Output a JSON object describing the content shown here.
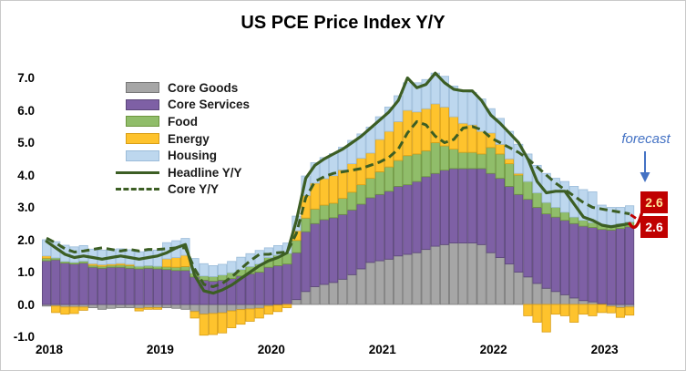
{
  "title": "US PCE Price Index Y/Y",
  "annotation": {
    "label": "forecast",
    "headline_value": "2.6",
    "core_value": "2.6",
    "text_color": "#4472c4",
    "badge_bg": "#c00000",
    "badge_text_top": "#ffe699",
    "badge_text_bottom": "#ffffff",
    "forecast_line_color": "#c00000"
  },
  "chart_data": {
    "type": "combo: stacked monthly bars + lines",
    "title": "US PCE Price Index Y/Y",
    "ylim": [
      -1.0,
      7.0
    ],
    "yticks": [
      "7.0",
      "6.0",
      "5.0",
      "4.0",
      "3.0",
      "2.0",
      "1.0",
      "0.0",
      "-1.0"
    ],
    "xticks": [
      "2018",
      "2019",
      "2020",
      "2021",
      "2022",
      "2023"
    ],
    "grid": false,
    "legend_position": "upper-left-inside",
    "categories": [
      "2018-01",
      "2018-02",
      "2018-03",
      "2018-04",
      "2018-05",
      "2018-06",
      "2018-07",
      "2018-08",
      "2018-09",
      "2018-10",
      "2018-11",
      "2018-12",
      "2019-01",
      "2019-02",
      "2019-03",
      "2019-04",
      "2019-05",
      "2019-06",
      "2019-07",
      "2019-08",
      "2019-09",
      "2019-10",
      "2019-11",
      "2019-12",
      "2020-01",
      "2020-02",
      "2020-03",
      "2020-04",
      "2020-05",
      "2020-06",
      "2020-07",
      "2020-08",
      "2020-09",
      "2020-10",
      "2020-11",
      "2020-12",
      "2021-01",
      "2021-02",
      "2021-03",
      "2021-04",
      "2021-05",
      "2021-06",
      "2021-07",
      "2021-08",
      "2021-09",
      "2021-10",
      "2021-11",
      "2021-12",
      "2022-01",
      "2022-02",
      "2022-03",
      "2022-04",
      "2022-05",
      "2022-06",
      "2022-07",
      "2022-08",
      "2022-09",
      "2022-10",
      "2022-11",
      "2022-12",
      "2023-01",
      "2023-02",
      "2023-03",
      "2023-04"
    ],
    "bar_series": [
      {
        "name": "Core Goods",
        "color": "#a6a6a6",
        "border": "#787878",
        "values": [
          -0.05,
          -0.05,
          -0.08,
          -0.08,
          -0.08,
          -0.1,
          -0.15,
          -0.12,
          -0.1,
          -0.1,
          -0.12,
          -0.1,
          -0.1,
          -0.1,
          -0.12,
          -0.15,
          -0.22,
          -0.3,
          -0.28,
          -0.26,
          -0.2,
          -0.16,
          -0.14,
          -0.12,
          -0.05,
          -0.02,
          0,
          0.15,
          0.4,
          0.55,
          0.62,
          0.68,
          0.78,
          0.92,
          1.1,
          1.3,
          1.35,
          1.4,
          1.5,
          1.55,
          1.6,
          1.7,
          1.8,
          1.85,
          1.9,
          1.9,
          1.9,
          1.85,
          1.6,
          1.45,
          1.25,
          1.0,
          0.85,
          0.65,
          0.5,
          0.4,
          0.3,
          0.2,
          0.12,
          0.08,
          0.02,
          -0.06,
          -0.1,
          -0.08
        ]
      },
      {
        "name": "Core Services",
        "color": "#7e60a5",
        "border": "#5b4679",
        "values": [
          1.35,
          1.38,
          1.28,
          1.25,
          1.28,
          1.15,
          1.12,
          1.15,
          1.15,
          1.12,
          1.1,
          1.12,
          1.1,
          1.08,
          1.05,
          1.05,
          0.85,
          0.75,
          0.72,
          0.75,
          0.8,
          0.88,
          0.95,
          1.0,
          1.15,
          1.2,
          1.25,
          1.45,
          1.85,
          1.95,
          2.0,
          2.0,
          2.0,
          2.0,
          2.0,
          2.0,
          2.05,
          2.1,
          2.15,
          2.15,
          2.2,
          2.25,
          2.25,
          2.3,
          2.3,
          2.3,
          2.3,
          2.35,
          2.45,
          2.45,
          2.4,
          2.4,
          2.4,
          2.35,
          2.3,
          2.3,
          2.3,
          2.3,
          2.3,
          2.3,
          2.3,
          2.3,
          2.35,
          2.4
        ]
      },
      {
        "name": "Food",
        "color": "#90bd6a",
        "border": "#6d963f",
        "values": [
          0.08,
          0.06,
          0.05,
          0.05,
          0.06,
          0.06,
          0.06,
          0.06,
          0.07,
          0.08,
          0.08,
          0.08,
          0.08,
          0.08,
          0.1,
          0.12,
          0.12,
          0.13,
          0.14,
          0.16,
          0.18,
          0.2,
          0.22,
          0.25,
          0.3,
          0.32,
          0.33,
          0.38,
          0.42,
          0.45,
          0.45,
          0.45,
          0.5,
          0.55,
          0.6,
          0.6,
          0.7,
          0.75,
          0.8,
          0.9,
          0.85,
          0.8,
          0.95,
          0.75,
          0.6,
          0.5,
          0.5,
          0.45,
          0.8,
          0.75,
          0.7,
          0.6,
          0.55,
          0.45,
          0.35,
          0.3,
          0.25,
          0.2,
          0.18,
          0.15,
          0.15,
          0.15,
          0.15,
          0.15
        ]
      },
      {
        "name": "Energy",
        "color": "#fec32d",
        "border": "#d89e16",
        "values": [
          0.07,
          -0.2,
          -0.22,
          -0.2,
          -0.1,
          0.05,
          0.05,
          0.04,
          0.05,
          0.04,
          -0.08,
          -0.05,
          -0.05,
          0.25,
          0.3,
          0.35,
          -0.2,
          -0.65,
          -0.65,
          -0.62,
          -0.52,
          -0.45,
          -0.38,
          -0.3,
          -0.25,
          -0.2,
          -0.1,
          0.3,
          0.7,
          0.8,
          0.82,
          0.85,
          0.88,
          0.88,
          0.82,
          0.78,
          1.0,
          1.1,
          1.2,
          1.4,
          1.3,
          1.3,
          1.2,
          1.2,
          1.0,
          0.9,
          0.85,
          0.7,
          0.45,
          0.3,
          0.15,
          0.05,
          -0.35,
          -0.55,
          -0.85,
          -0.3,
          -0.35,
          -0.55,
          -0.3,
          -0.35,
          -0.25,
          -0.2,
          -0.3,
          -0.25
        ]
      },
      {
        "name": "Housing",
        "color": "#bdd7ee",
        "border": "#9cbcd9",
        "values": [
          0.5,
          0.5,
          0.5,
          0.48,
          0.48,
          0.45,
          0.45,
          0.45,
          0.45,
          0.45,
          0.45,
          0.45,
          0.5,
          0.5,
          0.52,
          0.52,
          0.45,
          0.38,
          0.34,
          0.33,
          0.35,
          0.38,
          0.4,
          0.42,
          0.3,
          0.3,
          0.32,
          0.45,
          0.6,
          0.63,
          0.65,
          0.68,
          0.7,
          0.72,
          0.75,
          0.8,
          0.7,
          0.75,
          0.8,
          0.85,
          0.9,
          0.9,
          0.95,
          0.95,
          0.95,
          1.0,
          1.0,
          1.0,
          0.75,
          0.8,
          0.85,
          0.9,
          0.85,
          0.85,
          0.9,
          0.9,
          0.95,
          0.95,
          0.95,
          0.95,
          0.6,
          0.55,
          0.5,
          0.5
        ]
      }
    ],
    "line_series": [
      {
        "name": "Headline Y/Y",
        "style": "solid",
        "color": "#3c5e24",
        "values": [
          1.95,
          1.75,
          1.55,
          1.45,
          1.5,
          1.45,
          1.4,
          1.45,
          1.5,
          1.45,
          1.4,
          1.45,
          1.5,
          1.6,
          1.75,
          1.85,
          0.9,
          0.42,
          0.35,
          0.45,
          0.6,
          0.8,
          1.0,
          1.2,
          1.35,
          1.45,
          1.6,
          2.6,
          3.9,
          4.3,
          4.5,
          4.65,
          4.8,
          5.0,
          5.2,
          5.45,
          5.7,
          5.95,
          6.3,
          7.0,
          6.7,
          6.8,
          7.15,
          6.85,
          6.65,
          6.6,
          6.6,
          6.3,
          5.85,
          5.6,
          5.3,
          5.0,
          4.5,
          3.8,
          3.45,
          3.5,
          3.5,
          3.1,
          2.7,
          2.6,
          2.45,
          2.4,
          2.45,
          2.5
        ]
      },
      {
        "name": "Core Y/Y",
        "style": "dashed",
        "color": "#3c5e24",
        "values": [
          2.05,
          1.9,
          1.72,
          1.62,
          1.65,
          1.7,
          1.75,
          1.7,
          1.65,
          1.7,
          1.65,
          1.7,
          1.7,
          1.72,
          1.75,
          1.75,
          1.1,
          0.62,
          0.55,
          0.65,
          0.85,
          1.1,
          1.35,
          1.55,
          1.55,
          1.6,
          1.62,
          2.2,
          3.3,
          3.8,
          3.95,
          4.05,
          4.1,
          4.15,
          4.2,
          4.3,
          4.4,
          4.55,
          4.8,
          5.3,
          5.65,
          5.55,
          5.2,
          5.0,
          5.1,
          5.45,
          5.5,
          5.4,
          5.15,
          5.0,
          4.85,
          4.7,
          4.5,
          4.25,
          4.0,
          3.75,
          3.55,
          3.35,
          3.15,
          3.0,
          2.95,
          2.9,
          2.85,
          2.8
        ]
      }
    ],
    "forecast": {
      "headline_end": 2.6,
      "core_end": 2.6,
      "color": "#c00000"
    }
  }
}
